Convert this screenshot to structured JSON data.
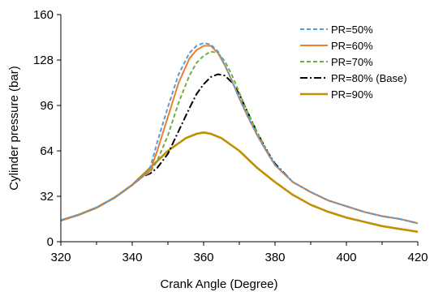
{
  "chart_data": {
    "type": "line",
    "xlabel": "Crank Angle (Degree)",
    "ylabel": "Cylinder pressure (bar)",
    "xlim": [
      320,
      420
    ],
    "ylim": [
      0,
      160
    ],
    "xticks": [
      320,
      340,
      360,
      380,
      400,
      420
    ],
    "yticks": [
      0,
      32,
      64,
      96,
      128,
      160
    ],
    "grid": "off",
    "legend_position": "top-right",
    "series": [
      {
        "name": "PR=50%",
        "color": "#5b9bd5",
        "dash": "dashed",
        "x": [
          320,
          325,
          330,
          335,
          340,
          343,
          345,
          347,
          350,
          353,
          356,
          358,
          360,
          362,
          364,
          366,
          368,
          370,
          372,
          375,
          378,
          380,
          385,
          390,
          395,
          400,
          405,
          410,
          415,
          420
        ],
        "y": [
          15,
          19,
          24,
          31,
          40,
          46,
          52,
          70,
          95,
          118,
          133,
          138,
          140,
          139,
          134,
          124,
          113,
          101,
          90,
          75,
          62,
          54,
          42,
          35,
          29,
          25,
          21,
          18,
          16,
          13
        ]
      },
      {
        "name": "PR=60%",
        "color": "#ed7d31",
        "dash": "solid",
        "x": [
          320,
          325,
          330,
          335,
          340,
          343,
          345,
          347,
          350,
          353,
          356,
          358,
          360,
          362,
          364,
          366,
          368,
          370,
          372,
          375,
          378,
          380,
          385,
          390,
          395,
          400,
          405,
          410,
          415,
          420
        ],
        "y": [
          15,
          19,
          24,
          31,
          40,
          46,
          50,
          64,
          88,
          112,
          129,
          135,
          138,
          138,
          133,
          124,
          113,
          101,
          90,
          75,
          62,
          54,
          42,
          35,
          29,
          25,
          21,
          18,
          16,
          13
        ]
      },
      {
        "name": "PR=70%",
        "color": "#70ad47",
        "dash": "dashed",
        "x": [
          320,
          325,
          330,
          335,
          340,
          343,
          345,
          347,
          350,
          353,
          356,
          358,
          360,
          362,
          364,
          366,
          368,
          370,
          372,
          375,
          378,
          380,
          385,
          390,
          395,
          400,
          405,
          410,
          415,
          420
        ],
        "y": [
          15,
          19,
          24,
          31,
          40,
          46,
          49,
          57,
          75,
          98,
          117,
          126,
          131,
          134,
          133,
          127,
          117,
          105,
          93,
          77,
          63,
          54,
          42,
          35,
          29,
          25,
          21,
          18,
          16,
          13
        ]
      },
      {
        "name": "PR=80% (Base)",
        "color": "#000000",
        "dash": "dashdot",
        "x": [
          320,
          325,
          330,
          335,
          340,
          343,
          345,
          347,
          350,
          353,
          356,
          358,
          360,
          362,
          364,
          366,
          368,
          370,
          372,
          375,
          378,
          380,
          385,
          390,
          395,
          400,
          405,
          410,
          415,
          420
        ],
        "y": [
          15,
          19,
          24,
          31,
          40,
          46,
          48,
          52,
          62,
          78,
          94,
          104,
          111,
          116,
          118,
          117,
          112,
          104,
          93,
          77,
          63,
          55,
          42,
          35,
          29,
          25,
          21,
          18,
          16,
          13
        ]
      },
      {
        "name": "PR=90%",
        "color": "#bf9000",
        "dash": "solid",
        "x": [
          320,
          325,
          330,
          335,
          340,
          345,
          350,
          355,
          358,
          360,
          362,
          365,
          370,
          375,
          380,
          385,
          390,
          395,
          400,
          405,
          410,
          415,
          420
        ],
        "y": [
          15,
          19,
          24,
          31,
          40,
          52,
          64,
          73,
          76,
          77,
          76,
          73,
          64,
          52,
          42,
          33,
          26,
          21,
          17,
          14,
          11,
          9,
          7
        ]
      }
    ]
  }
}
